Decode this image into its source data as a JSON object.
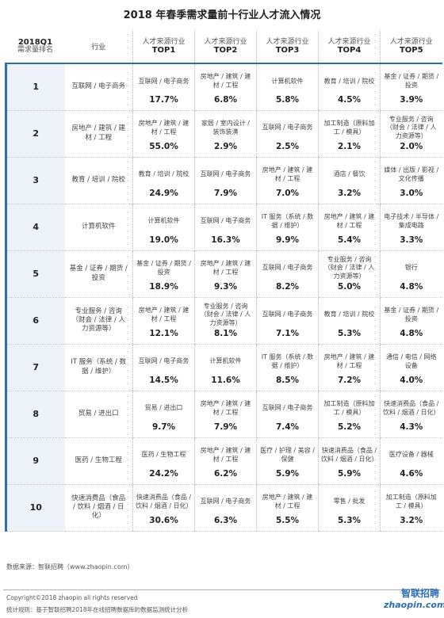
{
  "title": "2018 年春季需求量前十行业人才流入情况",
  "header": {
    "rank_year": "2018Q1",
    "rank_sub": "需求量排名",
    "industry": "行业",
    "source_label": "人才来源行业",
    "levels": [
      "TOP1",
      "TOP2",
      "TOP3",
      "TOP4",
      "TOP5"
    ]
  },
  "rows": [
    {
      "rank": "1",
      "industry": "互联网 / 电子商务",
      "tops": [
        {
          "name": "互联网 / 电子商务",
          "pct": "17.7%"
        },
        {
          "name": "房地产 / 建筑 / 建材 / 工程",
          "pct": "6.8%"
        },
        {
          "name": "计算机软件",
          "pct": "5.8%"
        },
        {
          "name": "教育 / 培训 / 院校",
          "pct": "4.5%"
        },
        {
          "name": "基金 / 证券 / 期货 / 投资",
          "pct": "3.9%"
        }
      ]
    },
    {
      "rank": "2",
      "industry": "房地产 / 建筑 / 建材 / 工程",
      "tops": [
        {
          "name": "房地产 / 建筑 / 建材 / 工程",
          "pct": "55.0%"
        },
        {
          "name": "家居 / 室内设计 / 装饰装潢",
          "pct": "2.9%"
        },
        {
          "name": "互联网 / 电子商务",
          "pct": "2.5%"
        },
        {
          "name": "加工制造（原料加工 / 模具）",
          "pct": "2.1%"
        },
        {
          "name": "专业服务 / 咨询（财会 / 法律 / 人力资源等）",
          "pct": "2.0%"
        }
      ]
    },
    {
      "rank": "3",
      "industry": "教育 / 培训 / 院校",
      "tops": [
        {
          "name": "教育 / 培训 / 院校",
          "pct": "24.9%"
        },
        {
          "name": "互联网 / 电子商务",
          "pct": "7.9%"
        },
        {
          "name": "房地产 / 建筑 / 建材 / 工程",
          "pct": "7.0%"
        },
        {
          "name": "酒店 / 餐饮",
          "pct": "3.2%"
        },
        {
          "name": "媒体 / 出版 / 影视 / 文化传播",
          "pct": "3.0%"
        }
      ]
    },
    {
      "rank": "4",
      "industry": "计算机软件",
      "tops": [
        {
          "name": "计算机软件",
          "pct": "19.0%"
        },
        {
          "name": "互联网 / 电子商务",
          "pct": "16.3%"
        },
        {
          "name": "IT 服务（系统 / 数据 / 维护）",
          "pct": "9.9%"
        },
        {
          "name": "房地产 / 建筑 / 建材 / 工程",
          "pct": "5.4%"
        },
        {
          "name": "电子技术 / 半导体 / 集成电路",
          "pct": "3.3%"
        }
      ]
    },
    {
      "rank": "5",
      "industry": "基金 / 证券 / 期货 / 投资",
      "tops": [
        {
          "name": "基金 / 证券 / 期货 / 投资",
          "pct": "18.9%"
        },
        {
          "name": "房地产 / 建筑 / 建材 / 工程",
          "pct": "9.3%"
        },
        {
          "name": "互联网 / 电子商务",
          "pct": "8.2%"
        },
        {
          "name": "专业服务 / 咨询（财会 / 法律 / 人力资源等）",
          "pct": "5.0%"
        },
        {
          "name": "银行",
          "pct": "4.8%"
        }
      ]
    },
    {
      "rank": "6",
      "industry": "专业服务 / 咨询（财会 / 法律 / 人力资源等）",
      "tops": [
        {
          "name": "房地产 / 建筑 / 建材 / 工程",
          "pct": "12.1%"
        },
        {
          "name": "专业服务 / 咨询（财会 / 法律 / 人力资源等）",
          "pct": "8.1%"
        },
        {
          "name": "互联网 / 电子商务",
          "pct": "7.1%"
        },
        {
          "name": "教育 / 培训 / 院校",
          "pct": "5.3%"
        },
        {
          "name": "基金 / 证券 / 期货 / 投资",
          "pct": "4.8%"
        }
      ]
    },
    {
      "rank": "7",
      "industry": "IT 服务（系统 / 数据 / 维护）",
      "tops": [
        {
          "name": "互联网 / 电子商务",
          "pct": "14.5%"
        },
        {
          "name": "计算机软件",
          "pct": "11.6%"
        },
        {
          "name": "IT 服务（系统 / 数据 / 维护）",
          "pct": "8.5%"
        },
        {
          "name": "房地产 / 建筑 / 建材 / 工程",
          "pct": "7.2%"
        },
        {
          "name": "通信 / 电信 / 网络设备",
          "pct": "4.0%"
        }
      ]
    },
    {
      "rank": "8",
      "industry": "贸易 / 进出口",
      "tops": [
        {
          "name": "贸易 / 进出口",
          "pct": "9.7%"
        },
        {
          "name": "房地产 / 建筑 / 建材 / 工程",
          "pct": "7.9%"
        },
        {
          "name": "互联网 / 电子商务",
          "pct": "7.4%"
        },
        {
          "name": "加工制造（原料加工 / 模具）",
          "pct": "5.2%"
        },
        {
          "name": "快速消费品（食品 / 饮料 / 烟酒 / 日化）",
          "pct": "4.3%"
        }
      ]
    },
    {
      "rank": "9",
      "industry": "医药 / 生物工程",
      "tops": [
        {
          "name": "医药 / 生物工程",
          "pct": "24.2%"
        },
        {
          "name": "房地产 / 建筑 / 建材 / 工程",
          "pct": "6.2%"
        },
        {
          "name": "医疗 / 护理 / 美容 / 保健",
          "pct": "5.9%"
        },
        {
          "name": "快速消费品（食品 / 饮料 / 烟酒 / 日化）",
          "pct": "5.9%"
        },
        {
          "name": "医疗设备 / 器械",
          "pct": "4.6%"
        }
      ]
    },
    {
      "rank": "10",
      "industry": "快速消费品（食品 / 饮料 / 烟酒 / 日化）",
      "tops": [
        {
          "name": "快速消费品（食品 / 饮料 / 烟酒 / 日化）",
          "pct": "30.6%"
        },
        {
          "name": "互联网 / 电子商务",
          "pct": "6.3%"
        },
        {
          "name": "房地产 / 建筑 / 建材 / 工程",
          "pct": "5.5%"
        },
        {
          "name": "零售 / 批发",
          "pct": "5.3%"
        },
        {
          "name": "加工制造（原料加工 / 模具）",
          "pct": "3.2%"
        }
      ]
    }
  ],
  "source": "数据来源：智联招聘（www.zhaopin.com）",
  "copyright": "Copyright©2018 zhaopin all rights reserved",
  "stat_rule": "统计规则：基于智联招聘2018年在线招聘数据库的数据监测统计分析",
  "logo": {
    "cn": "智联招聘",
    "en": "zhaopin.com"
  },
  "colors": {
    "accent": "#2c6eb5",
    "rank_bg": "#eef3fa"
  }
}
